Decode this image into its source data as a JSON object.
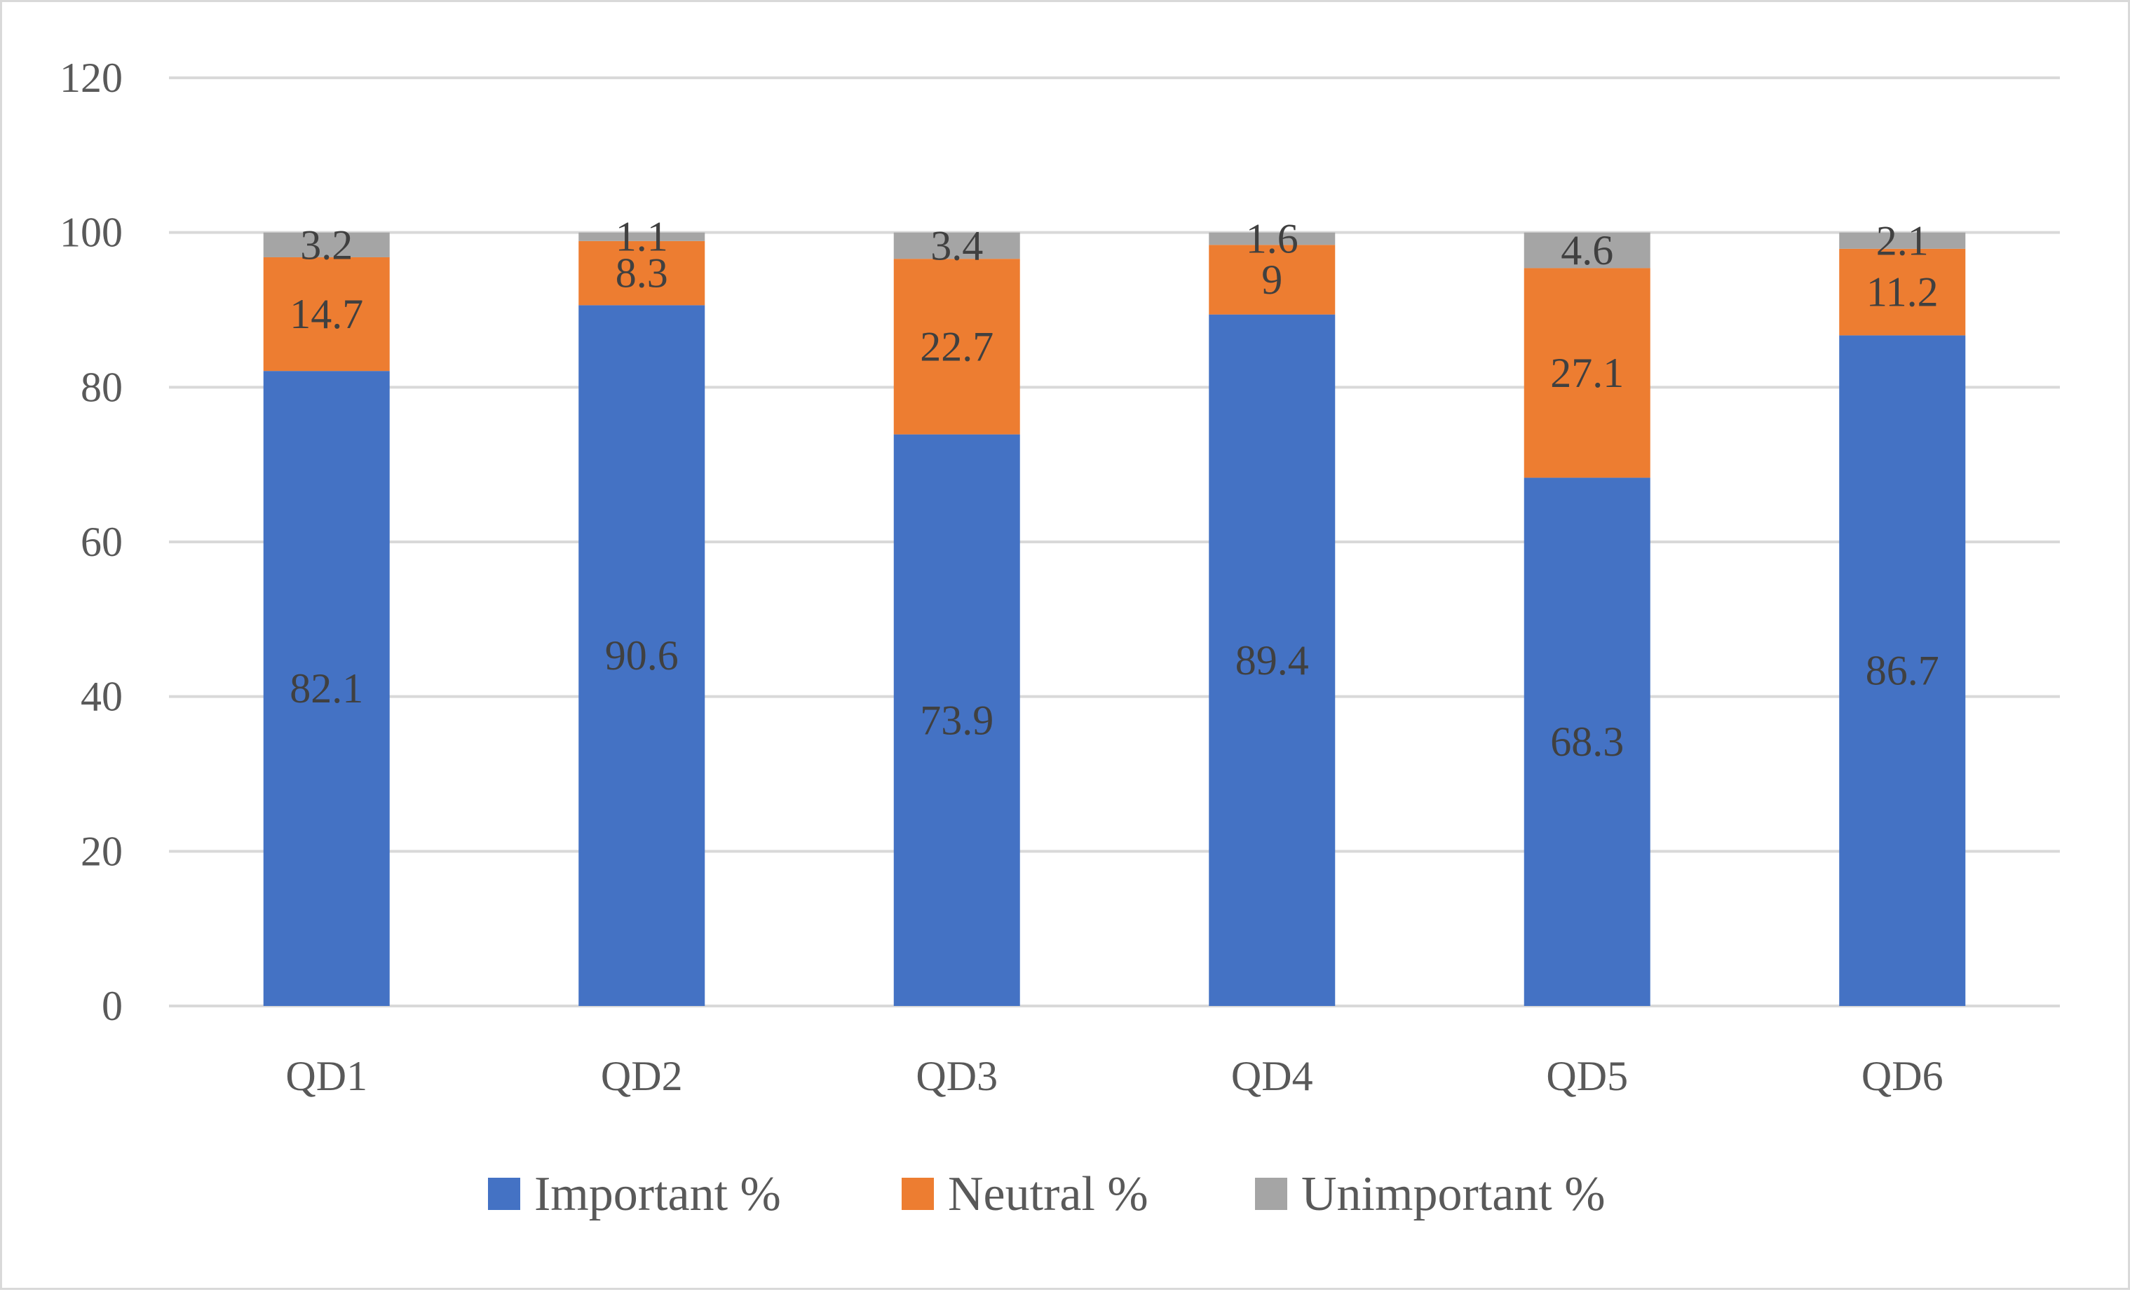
{
  "chart_data": {
    "type": "bar",
    "stacked": true,
    "title": "",
    "xlabel": "",
    "ylabel": "",
    "ylim": [
      0,
      120
    ],
    "yticks": [
      0,
      20,
      40,
      60,
      80,
      100,
      120
    ],
    "grid": true,
    "legend_position": "bottom",
    "categories": [
      "QD1",
      "QD2",
      "QD3",
      "QD4",
      "QD5",
      "QD6"
    ],
    "series": [
      {
        "name": "Important %",
        "color": "#4472c4",
        "values": [
          82.1,
          90.6,
          73.9,
          89.4,
          68.3,
          86.7
        ]
      },
      {
        "name": "Neutral %",
        "color": "#ed7d31",
        "values": [
          14.7,
          8.3,
          22.7,
          9,
          27.1,
          11.2
        ]
      },
      {
        "name": "Unimportant %",
        "color": "#a5a5a5",
        "values": [
          3.2,
          1.1,
          3.4,
          1.6,
          4.6,
          2.1
        ]
      }
    ]
  }
}
